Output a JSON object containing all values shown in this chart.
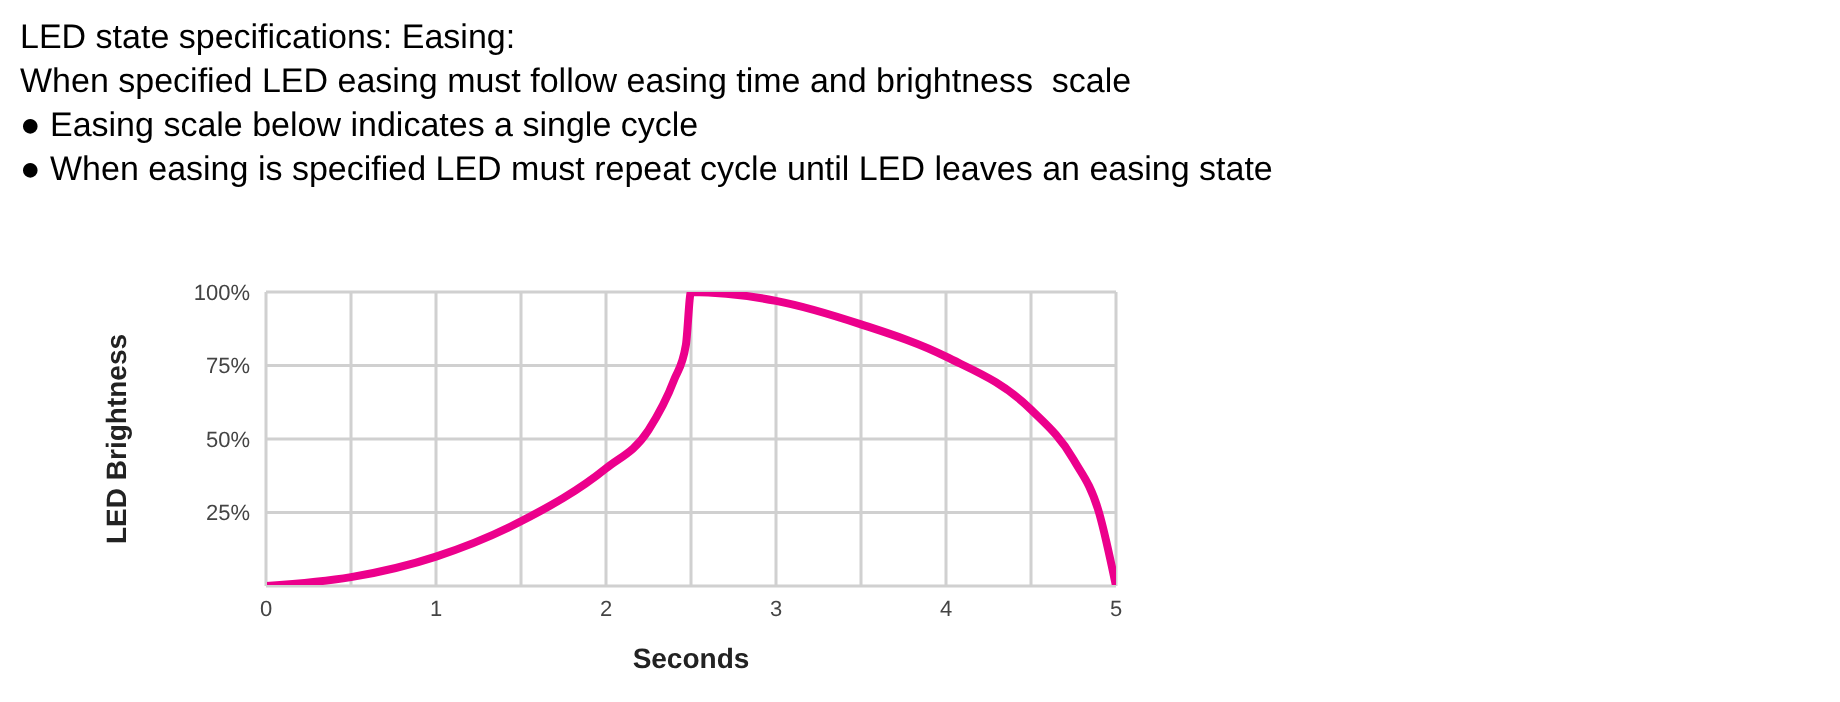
{
  "chart_data": {
    "type": "line",
    "title": "LED state specifications: Easing:",
    "subtitle": "When specified LED easing must follow easing time and brightness  scale",
    "annotations": [
      "● Easing scale below indicates a single cycle",
      "● When easing is specified LED must repeat cycle until LED leaves an easing state"
    ],
    "xlabel": "Seconds",
    "ylabel": "LED Brightness",
    "series": [
      {
        "color": "#ec008c",
        "x": [
          0,
          0.5,
          1,
          1.5,
          2,
          2.25,
          2.4,
          2.47,
          2.5,
          3,
          3.5,
          4,
          4.5,
          4.75,
          4.9,
          5
        ],
        "values": [
          0,
          3,
          10,
          22,
          40,
          53,
          70,
          82,
          100,
          97,
          89,
          78,
          60,
          43,
          25,
          0
        ]
      }
    ],
    "xlim": [
      0,
      5
    ],
    "xticks": [
      0,
      {
        "value": 0.5,
        "label": null
      },
      1,
      {
        "value": 1.5,
        "label": null
      },
      2,
      {
        "value": 2.5,
        "label": null
      },
      3,
      {
        "value": 3.5,
        "label": null
      },
      4,
      {
        "value": 4.5,
        "label": null
      },
      5
    ],
    "ylim": [
      0,
      100
    ],
    "yticks": [
      {
        "value": 0,
        "label": null
      },
      {
        "value": 25,
        "label": "25%"
      },
      {
        "value": 50,
        "label": "50%"
      },
      {
        "value": 75,
        "label": "75%"
      },
      {
        "value": 100,
        "label": "100%"
      }
    ],
    "grid": true,
    "marker": "none",
    "line_style": "solid"
  }
}
